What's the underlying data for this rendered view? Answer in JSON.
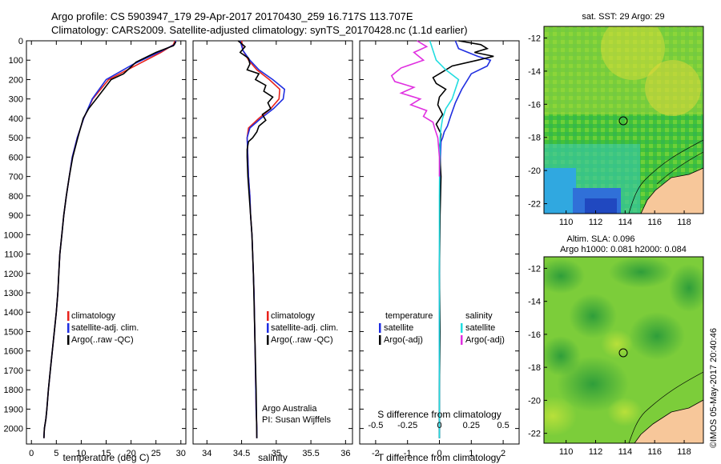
{
  "header": {
    "line1": "Argo profile: CS 5903947_179 29-Apr-2017 20170430_259 16.717S 113.707E",
    "line2": "Climatology: CARS2009. Satellite-adjusted climatology: synTS_20170428.nc (1.1d earlier)"
  },
  "side_text": "©IMOS 05-May-2017 20:40:46",
  "colors": {
    "climatology": "#e8231c",
    "satellite": "#1f2ee0",
    "argo": "#000000",
    "salinity_sat": "#22dde0",
    "salinity_argo": "#e030e0"
  },
  "chart_data": [
    {
      "type": "line",
      "id": "temperature",
      "xlabel": "temperature (deg C)",
      "xlim": [
        -1,
        31
      ],
      "xticks": [
        0,
        5,
        10,
        15,
        20,
        25,
        30
      ],
      "ylim": [
        2080,
        0
      ],
      "yticks": [
        0,
        100,
        200,
        300,
        400,
        500,
        600,
        700,
        800,
        900,
        1000,
        1100,
        1200,
        1300,
        1400,
        1500,
        1600,
        1700,
        1800,
        1900,
        2000
      ],
      "legend": [
        "climatology",
        "satellite-adj. clim.",
        "Argo(..raw -QC)"
      ],
      "series": [
        {
          "name": "climatology",
          "color": "#e8231c",
          "x": [
            28.8,
            28.5,
            26,
            21.5,
            15.5,
            12.3,
            10.5,
            9.2,
            8.2,
            7.6,
            7,
            6.5,
            6.1,
            5.7,
            5.5,
            5.3,
            5,
            4.6,
            4.2,
            3.8,
            3.4,
            3.1,
            2.9,
            2.6,
            2.5
          ],
          "y": [
            0,
            20,
            60,
            120,
            200,
            300,
            400,
            500,
            600,
            700,
            800,
            900,
            1000,
            1100,
            1200,
            1300,
            1400,
            1500,
            1600,
            1700,
            1800,
            1900,
            1950,
            2000,
            2050
          ]
        },
        {
          "name": "satellite-adj. clim.",
          "color": "#1f2ee0",
          "x": [
            29,
            28.7,
            25.5,
            20.5,
            15,
            12.2,
            10.5,
            9.2,
            8.2,
            7.6,
            7,
            6.5,
            6.1,
            5.7,
            5.5,
            5.3,
            5,
            4.6,
            4.2,
            3.8,
            3.4,
            3.1,
            2.9,
            2.6,
            2.5
          ],
          "y": [
            0,
            20,
            60,
            120,
            200,
            300,
            400,
            500,
            600,
            700,
            800,
            900,
            1000,
            1100,
            1200,
            1300,
            1400,
            1500,
            1600,
            1700,
            1800,
            1900,
            1950,
            2000,
            2050
          ]
        },
        {
          "name": "Argo(..raw -QC)",
          "color": "#000000",
          "x": [
            29,
            28.5,
            25,
            21,
            18.5,
            16,
            14.5,
            13,
            11.5,
            10.4,
            9.3,
            8.3,
            7.6,
            7,
            6.5,
            6.1,
            5.7,
            5.5,
            5.3,
            5,
            4.6,
            4.2,
            3.8,
            3.4,
            3.1,
            2.9,
            2.6,
            2.5
          ],
          "y": [
            5,
            25,
            60,
            110,
            170,
            200,
            250,
            300,
            350,
            400,
            500,
            600,
            700,
            800,
            900,
            1000,
            1100,
            1200,
            1300,
            1400,
            1500,
            1600,
            1700,
            1800,
            1900,
            1950,
            2000,
            2050
          ]
        }
      ]
    },
    {
      "type": "line",
      "id": "salinity",
      "xlabel": "salinity",
      "xlim": [
        33.8,
        36.1
      ],
      "xticks": [
        34,
        34.5,
        35,
        35.5,
        36
      ],
      "ylim": [
        2080,
        0
      ],
      "legend": [
        "climatology",
        "satellite-adj. clim.",
        "Argo(..raw -QC)"
      ],
      "annotation": [
        "Argo Australia",
        "PI: Susan Wijffels"
      ],
      "series": [
        {
          "name": "climatology",
          "color": "#e8231c",
          "x": [
            34.5,
            34.52,
            34.6,
            34.72,
            34.9,
            35.05,
            35.04,
            34.92,
            34.75,
            34.6,
            34.58,
            34.59,
            34.6,
            34.62,
            34.63,
            34.65,
            34.66,
            34.68,
            34.69,
            34.7,
            34.71,
            34.72,
            34.72
          ],
          "y": [
            0,
            50,
            100,
            150,
            200,
            250,
            300,
            350,
            400,
            450,
            500,
            600,
            700,
            800,
            900,
            1000,
            1100,
            1300,
            1500,
            1700,
            1900,
            2000,
            2050
          ]
        },
        {
          "name": "satellite-adj. clim.",
          "color": "#1f2ee0",
          "x": [
            34.48,
            34.52,
            34.62,
            34.75,
            34.95,
            35.12,
            35.1,
            34.96,
            34.78,
            34.62,
            34.58,
            34.59,
            34.6,
            34.62,
            34.63,
            34.65,
            34.66,
            34.68,
            34.69,
            34.7,
            34.71,
            34.72,
            34.72
          ],
          "y": [
            0,
            50,
            100,
            150,
            200,
            250,
            300,
            350,
            400,
            450,
            500,
            600,
            700,
            800,
            900,
            1000,
            1100,
            1300,
            1500,
            1700,
            1900,
            2000,
            2050
          ]
        },
        {
          "name": "Argo(..raw -QC)",
          "color": "#000000",
          "x": [
            34.45,
            34.55,
            34.48,
            34.6,
            34.62,
            34.58,
            34.75,
            34.7,
            34.85,
            34.82,
            34.95,
            34.88,
            34.92,
            34.8,
            34.85,
            34.75,
            34.72,
            34.66,
            34.6,
            34.58,
            34.58,
            34.59,
            34.61,
            34.63,
            34.65,
            34.67,
            34.69,
            34.71,
            34.72
          ],
          "y": [
            0,
            30,
            60,
            90,
            120,
            150,
            170,
            200,
            230,
            260,
            290,
            320,
            350,
            380,
            410,
            440,
            470,
            500,
            520,
            560,
            600,
            700,
            800,
            900,
            1000,
            1200,
            1500,
            1800,
            2050
          ]
        }
      ]
    },
    {
      "type": "line",
      "id": "difference",
      "xlabel": "T difference from climatology",
      "xlabel2": "S difference from climatology",
      "xlim": [
        -2.5,
        2.5
      ],
      "xticks": [
        -2,
        -1,
        0,
        1,
        2
      ],
      "xticks2_labels": [
        "-0.5",
        "-0.25",
        "0",
        "0.25",
        "0.5"
      ],
      "xticks2_values": [
        -2,
        -1,
        0,
        1,
        2
      ],
      "ylim": [
        2080,
        0
      ],
      "legend_temperature_title": "temperature",
      "legend_salinity_title": "salinity",
      "legend_temperature": [
        "satellite",
        "Argo(-adj)"
      ],
      "legend_salinity": [
        "satellite",
        "Argo(-adj)"
      ],
      "series": [
        {
          "name": "temperature satellite",
          "color": "#1f2ee0",
          "x": [
            0.5,
            0.6,
            1.2,
            1.6,
            1.5,
            1.0,
            0.7,
            0.5,
            0.35,
            0.25,
            0.15,
            0.1,
            0.05,
            0.03,
            0.02,
            0.01,
            0,
            0,
            0,
            0
          ],
          "y": [
            0,
            40,
            80,
            100,
            130,
            170,
            250,
            320,
            390,
            440,
            470,
            500,
            520,
            600,
            700,
            900,
            1200,
            1500,
            1800,
            2050
          ]
        },
        {
          "name": "temperature Argo(-adj)",
          "color": "#000000",
          "x": [
            0.6,
            1.3,
            1.5,
            1.1,
            1.7,
            1.2,
            0.4,
            0.1,
            -0.2,
            -0.1,
            0.2,
            0.0,
            -0.05,
            0.1,
            -0.1,
            0.05,
            0.0,
            0.05,
            0.02,
            0.0,
            0.02,
            0.0,
            0.0
          ],
          "y": [
            0,
            20,
            40,
            60,
            80,
            100,
            130,
            160,
            190,
            220,
            250,
            290,
            330,
            380,
            430,
            480,
            550,
            700,
            900,
            1200,
            1500,
            1800,
            2050
          ]
        },
        {
          "name": "salinity satellite",
          "color": "#22dde0",
          "x": [
            -0.3,
            -0.2,
            -0.1,
            0.2,
            0.6,
            0.5,
            0.4,
            0.2,
            0.1,
            0.05,
            0.02,
            0.01,
            0.0,
            0.0,
            0.0
          ],
          "y": [
            0,
            50,
            100,
            150,
            200,
            250,
            300,
            350,
            400,
            450,
            500,
            600,
            800,
            1200,
            2050
          ]
        },
        {
          "name": "salinity Argo(-adj)",
          "color": "#e030e0",
          "x": [
            -0.7,
            -0.4,
            -0.8,
            -0.5,
            -1.2,
            -1.5,
            -1.4,
            -0.8,
            -1.2,
            -0.6,
            -0.9,
            -0.4,
            -0.5,
            -0.2,
            -0.15,
            -0.05,
            0.0,
            0.0
          ],
          "y": [
            0,
            30,
            60,
            100,
            140,
            180,
            210,
            240,
            270,
            300,
            330,
            360,
            390,
            420,
            450,
            500,
            600,
            700
          ]
        }
      ]
    },
    {
      "type": "heatmap",
      "id": "sst-map",
      "title": "sat. SST: 29 Argo: 29",
      "xticks": [
        110,
        112,
        114,
        116,
        118
      ],
      "yticks": [
        -12,
        -14,
        -16,
        -18,
        -20,
        -22
      ],
      "xlim": [
        108.5,
        119.3
      ],
      "ylim": [
        -22.6,
        -11.3
      ],
      "argo_position": {
        "lon": 113.707,
        "lat": -16.717
      }
    },
    {
      "type": "heatmap",
      "id": "sla-map",
      "title": "Altim. SLA: 0.096",
      "subtitle": "Argo h1000: 0.081 h2000: 0.084",
      "xticks": [
        110,
        112,
        114,
        116,
        118
      ],
      "yticks": [
        -12,
        -14,
        -16,
        -18,
        -20,
        -22
      ],
      "xlim": [
        108.5,
        119.3
      ],
      "ylim": [
        -22.6,
        -11.3
      ],
      "argo_position": {
        "lon": 113.707,
        "lat": -16.717
      }
    }
  ]
}
